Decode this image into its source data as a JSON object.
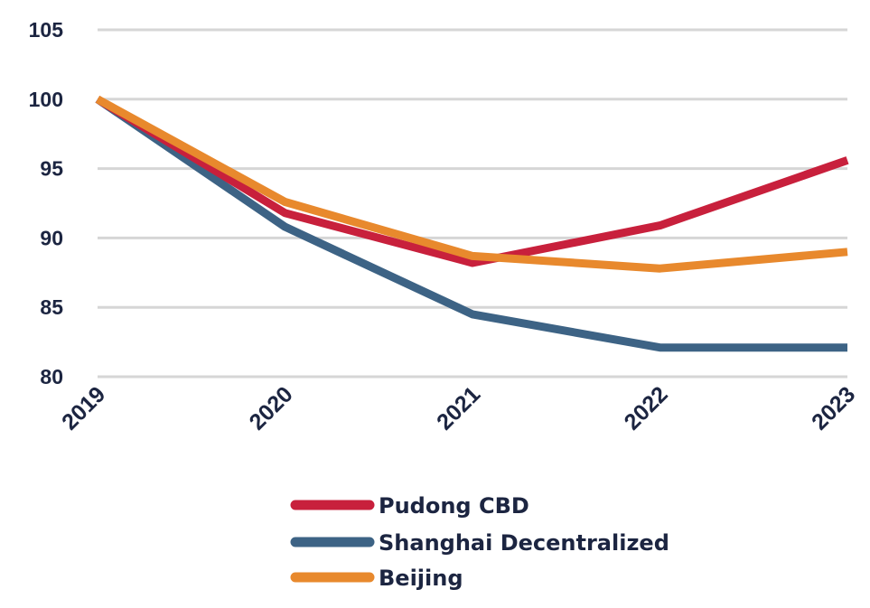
{
  "chart_data": {
    "type": "line",
    "categories": [
      "2019",
      "2020",
      "2021",
      "2022",
      "2023"
    ],
    "ylim": [
      80,
      105
    ],
    "yticks": [
      "80",
      "85",
      "90",
      "95",
      "100",
      "105"
    ],
    "grid": true,
    "legend_placement": "bottom-center",
    "series": [
      {
        "name": "Pudong CBD",
        "color": "#c8203c",
        "values": [
          100,
          91.8,
          88.2,
          90.9,
          95.6
        ]
      },
      {
        "name": "Shanghai Decentralized",
        "color": "#3d6385",
        "values": [
          100,
          90.8,
          84.5,
          82.1,
          82.1
        ]
      },
      {
        "name": "Beijing",
        "color": "#e8892d",
        "values": [
          100,
          92.6,
          88.7,
          87.8,
          89.0
        ]
      }
    ]
  }
}
